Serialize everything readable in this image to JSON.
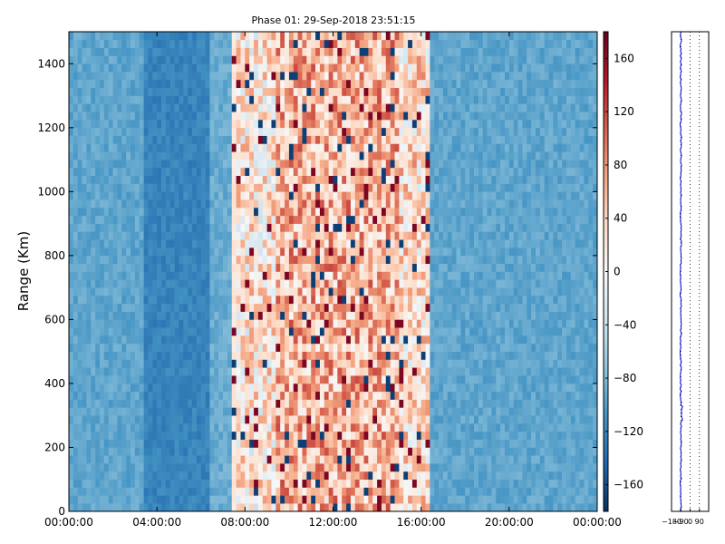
{
  "chart_data": [
    {
      "type": "heatmap",
      "title": "Phase 01: 29-Sep-2018 23:51:15",
      "ylabel": "Range (Km)",
      "xlabel": "",
      "x_range": [
        "00:00:00",
        "24:00:00"
      ],
      "x_ticks": [
        "00:00:00",
        "04:00:00",
        "08:00:00",
        "12:00:00",
        "16:00:00",
        "20:00:00",
        "00:00:00"
      ],
      "ylim": [
        0,
        1500
      ],
      "y_ticks": [
        0,
        200,
        400,
        600,
        800,
        1000,
        1200,
        1400
      ],
      "colorbar": {
        "range": [
          -180,
          180
        ],
        "ticks": [
          -160,
          -120,
          -80,
          -40,
          0,
          40,
          80,
          120,
          160
        ],
        "colormap": "RdBu_r",
        "low_color": "#0a3d75",
        "mid_color": "#f7f7f7",
        "high_color": "#6b0019"
      },
      "profile_phase_hours": [
        {
          "start": 0,
          "end": 3.5,
          "phase": -95
        },
        {
          "start": 3.5,
          "end": 6.5,
          "phase": -120
        },
        {
          "start": 6.5,
          "end": 7.5,
          "phase": -90
        },
        {
          "start": 7.5,
          "end": 9.5,
          "phase": 20
        },
        {
          "start": 9.5,
          "end": 15.0,
          "phase": 60
        },
        {
          "start": 15.0,
          "end": 16.5,
          "phase": 30
        },
        {
          "start": 16.5,
          "end": 24,
          "phase": -95
        }
      ],
      "grid": false
    },
    {
      "type": "line",
      "xlim": [
        -180,
        180
      ],
      "x_ticks": [
        -180,
        -90,
        0,
        90
      ],
      "x_tick_labels": [
        "−180",
        "−90",
        "0",
        "90"
      ],
      "ylim": [
        0,
        1500
      ],
      "series_color": "#0000cc",
      "typical_phase": -90
    }
  ]
}
